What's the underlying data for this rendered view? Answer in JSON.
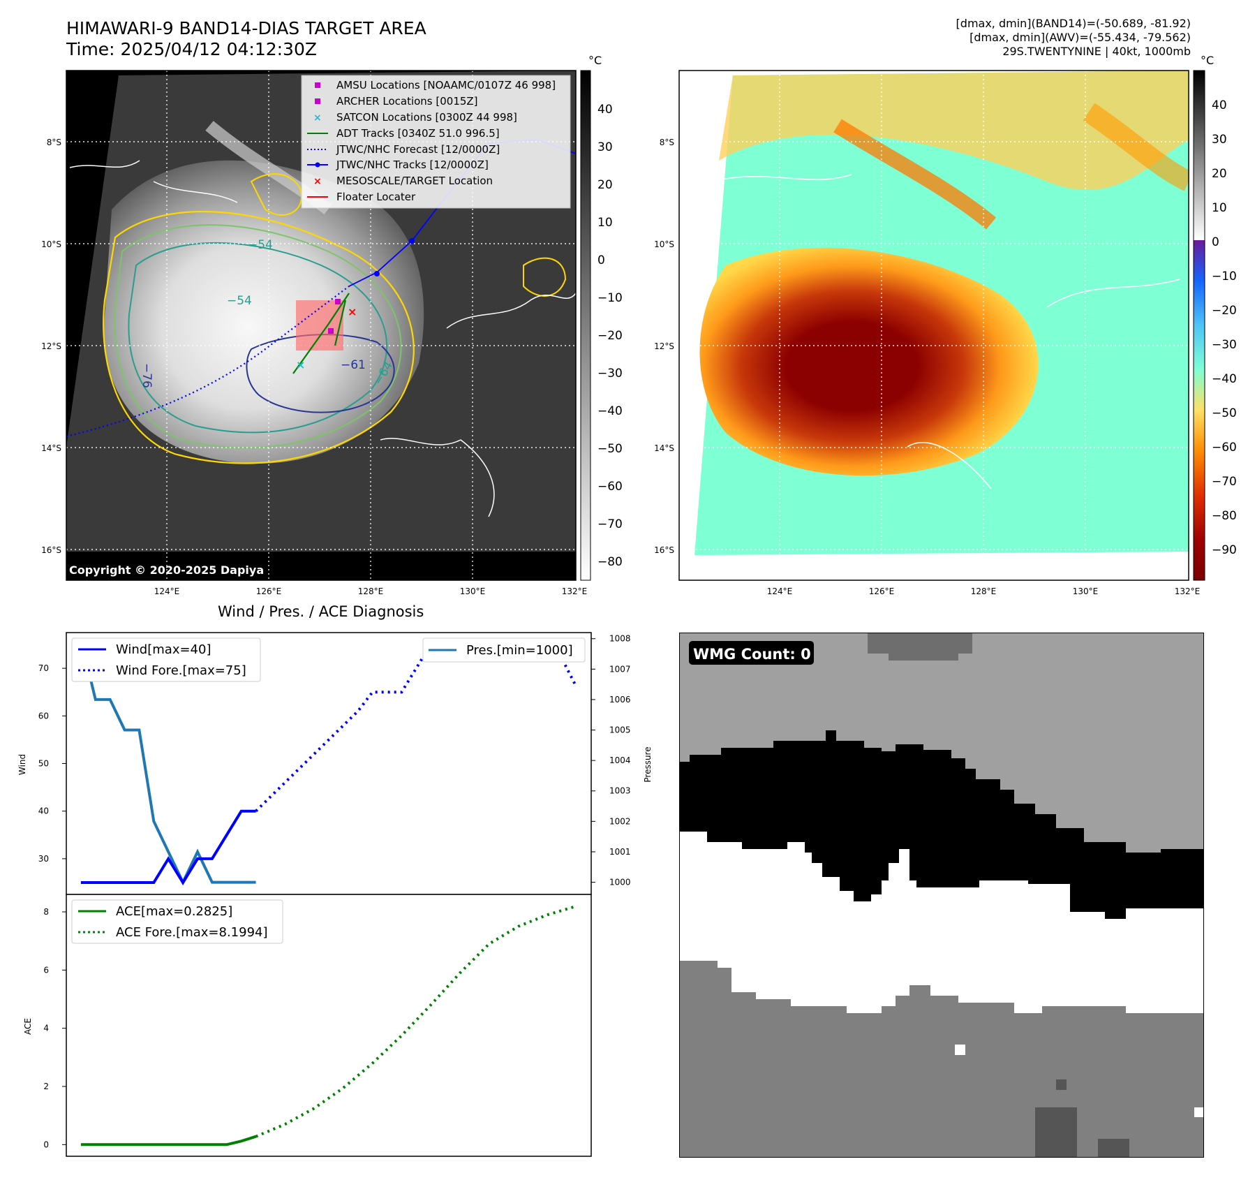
{
  "header": {
    "title_line1": "HIMAWARI-9 BAND14-DIAS TARGET AREA",
    "title_line2": "Time: 2025/04/12 04:12:30Z",
    "right_line1": "[dmax, dmin](BAND14)=(-50.689, -81.92)",
    "right_line2": "[dmax, dmin](AWV)=(-55.434, -79.562)",
    "right_line3": "29S.TWENTYNINE | 40kt, 1000mb",
    "copyright": "Copyright © 2020-2025 Dapiya"
  },
  "map_axes": {
    "lon_ticks": [
      "124°E",
      "126°E",
      "128°E",
      "130°E",
      "132°E"
    ],
    "lat_ticks": [
      "8°S",
      "10°S",
      "12°S",
      "14°S",
      "16°S"
    ]
  },
  "ir_colorbar": {
    "unit": "°C",
    "ticks": [
      "40",
      "30",
      "20",
      "10",
      "0",
      "−10",
      "−20",
      "−30",
      "−40",
      "−50",
      "−60",
      "−70",
      "−80"
    ]
  },
  "awv_colorbar": {
    "unit": "°C",
    "ticks": [
      "40",
      "30",
      "20",
      "10",
      "0",
      "−10",
      "−20",
      "−30",
      "−40",
      "−50",
      "−60",
      "−70",
      "−80",
      "−90"
    ]
  },
  "legend": [
    {
      "label": "AMSU Locations [NOAAMC/0107Z 46 998]",
      "color": "#cc00cc",
      "marker": "square"
    },
    {
      "label": "ARCHER Locations [0015Z]",
      "color": "#cc00cc",
      "marker": "square"
    },
    {
      "label": "SATCON Locations [0300Z 44 998]",
      "color": "#17becf",
      "marker": "x"
    },
    {
      "label": "ADT Tracks [0340Z 51.0 996.5]",
      "color": "#008000",
      "marker": "line"
    },
    {
      "label": "JTWC/NHC Forecast [12/0000Z]",
      "color": "#0000ff",
      "marker": "dotted"
    },
    {
      "label": "JTWC/NHC Tracks [12/0000Z]",
      "color": "#0000ff",
      "marker": "line-dot"
    },
    {
      "label": "MESOSCALE/TARGET Location",
      "color": "#ff0000",
      "marker": "x"
    },
    {
      "label": "Floater Locater",
      "color": "#ff0000",
      "marker": "line"
    }
  ],
  "contour_labels": [
    "−54",
    "−64",
    "−76",
    "−61",
    "−54"
  ],
  "wmg": {
    "label": "WMG Count: 0"
  },
  "diagnosis": {
    "title": "Wind / Pres. / ACE Diagnosis",
    "wind_ylabel": "Wind",
    "pressure_ylabel": "Pressure",
    "ace_ylabel": "ACE",
    "legend_wind": "Wind[max=40]",
    "legend_wind_fore": "Wind Fore.[max=75]",
    "legend_pres": "Pres.[min=1000]",
    "legend_ace": "ACE[max=0.2825]",
    "legend_ace_fore": "ACE Fore.[max=8.1994]",
    "wind_ticks": [
      "30",
      "40",
      "50",
      "60",
      "70"
    ],
    "pres_ticks": [
      "1000",
      "1001",
      "1002",
      "1003",
      "1004",
      "1005",
      "1006",
      "1007",
      "1008"
    ],
    "ace_ticks": [
      "0",
      "2",
      "4",
      "6",
      "8"
    ]
  },
  "chart_data": {
    "type": "line",
    "title": "Wind / Pres. / ACE Diagnosis",
    "wind": {
      "ylabel": "Wind",
      "ylim": [
        22.5,
        77.5
      ],
      "series": [
        {
          "name": "Wind[max=40]",
          "style": "solid",
          "color": "#0000ff",
          "x": [
            0,
            1,
            2,
            3,
            4,
            5,
            6,
            7,
            8,
            9,
            10,
            11,
            12
          ],
          "y": [
            25,
            25,
            25,
            25,
            25,
            25,
            30,
            25,
            30,
            30,
            35,
            40,
            40
          ]
        },
        {
          "name": "Wind Fore.[max=75]",
          "style": "dotted",
          "color": "#0000ff",
          "x": [
            12,
            13,
            14,
            15,
            16,
            17,
            18,
            19,
            20,
            21,
            22,
            23,
            24,
            25,
            26,
            27,
            28,
            29,
            30,
            31,
            32,
            33,
            34
          ],
          "y": [
            40,
            43,
            46,
            49,
            52,
            55,
            58,
            61,
            65,
            65,
            65,
            70,
            75,
            75,
            75,
            75,
            75,
            75,
            75,
            72,
            72,
            72,
            66
          ]
        }
      ]
    },
    "pressure": {
      "ylabel": "Pressure",
      "ylim": [
        999.6,
        1008.2
      ],
      "series": [
        {
          "name": "Pres.[min=1000]",
          "style": "solid",
          "color": "#1f77b4",
          "x": [
            0,
            1,
            2,
            3,
            4,
            5,
            6,
            7,
            8,
            9,
            10,
            11,
            12
          ],
          "y": [
            1008,
            1006,
            1006,
            1005,
            1005,
            1002,
            1001,
            1000,
            1001,
            1000,
            1000,
            1000,
            1000
          ]
        }
      ]
    },
    "ace": {
      "ylabel": "ACE",
      "ylim": [
        -0.4,
        8.6
      ],
      "series": [
        {
          "name": "ACE[max=0.2825]",
          "style": "solid",
          "color": "#008000",
          "x": [
            0,
            2,
            4,
            6,
            8,
            10,
            11,
            12
          ],
          "y": [
            0,
            0,
            0,
            0,
            0,
            0,
            0.12,
            0.28
          ]
        },
        {
          "name": "ACE Fore.[max=8.1994]",
          "style": "dotted",
          "color": "#008000",
          "x": [
            12,
            14,
            16,
            18,
            20,
            22,
            24,
            26,
            28,
            30,
            32,
            34
          ],
          "y": [
            0.28,
            0.7,
            1.25,
            1.95,
            2.8,
            3.75,
            4.8,
            5.9,
            6.9,
            7.5,
            7.9,
            8.2
          ]
        }
      ]
    },
    "x_range": [
      -1,
      35
    ]
  }
}
